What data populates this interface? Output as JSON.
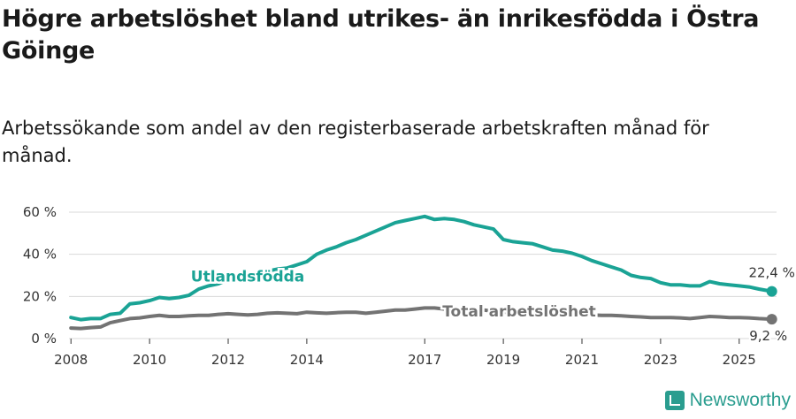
{
  "title": "Högre arbetslöshet bland utrikes- än inrikesfödda i Östra Göinge",
  "subtitle": "Arbetssökande som andel av den registerbaserade arbetskraften månad för månad.",
  "brand": "Newsworthy",
  "colors": {
    "foreign": "#1aa395",
    "total": "#737373",
    "grid": "#d9d9d9"
  },
  "chart_data": {
    "type": "line",
    "title": "Högre arbetslöshet bland utrikes- än inrikesfödda i Östra Göinge",
    "xlabel": "",
    "ylabel": "",
    "ylim": [
      0,
      60
    ],
    "xlim": [
      2007.95,
      2025.95
    ],
    "y_ticks": [
      0,
      20,
      40,
      60
    ],
    "y_tick_labels": [
      "0 %",
      "20 %",
      "40 %",
      "60 %"
    ],
    "x_ticks": [
      2008,
      2010,
      2012,
      2014,
      2017,
      2019,
      2021,
      2023,
      2025
    ],
    "x_tick_labels": [
      "2008",
      "2010",
      "2012",
      "2014",
      "2017",
      "2019",
      "2021",
      "2023",
      "2025"
    ],
    "series": [
      {
        "name": "Utlandsfödda",
        "color": "#1aa395",
        "end_label": "22,4 %",
        "points": [
          [
            2008.0,
            10
          ],
          [
            2008.25,
            9
          ],
          [
            2008.5,
            9.5
          ],
          [
            2008.75,
            9.5
          ],
          [
            2009.0,
            11.5
          ],
          [
            2009.25,
            12
          ],
          [
            2009.5,
            16.5
          ],
          [
            2009.75,
            17
          ],
          [
            2010.0,
            18
          ],
          [
            2010.25,
            19.5
          ],
          [
            2010.5,
            19
          ],
          [
            2010.75,
            19.5
          ],
          [
            2011.0,
            20.5
          ],
          [
            2011.25,
            23.5
          ],
          [
            2011.5,
            25
          ],
          [
            2011.75,
            26
          ],
          [
            2012.0,
            28
          ],
          [
            2012.25,
            29
          ],
          [
            2012.5,
            30
          ],
          [
            2012.75,
            31
          ],
          [
            2013.0,
            32
          ],
          [
            2013.25,
            33
          ],
          [
            2013.5,
            33.5
          ],
          [
            2013.75,
            35
          ],
          [
            2014.0,
            36.5
          ],
          [
            2014.25,
            40
          ],
          [
            2014.5,
            42
          ],
          [
            2014.75,
            43.5
          ],
          [
            2015.0,
            45.5
          ],
          [
            2015.25,
            47
          ],
          [
            2015.5,
            49
          ],
          [
            2015.75,
            51
          ],
          [
            2016.0,
            53
          ],
          [
            2016.25,
            55
          ],
          [
            2016.5,
            56
          ],
          [
            2016.75,
            57
          ],
          [
            2017.0,
            58
          ],
          [
            2017.25,
            56.5
          ],
          [
            2017.5,
            57
          ],
          [
            2017.75,
            56.5
          ],
          [
            2018.0,
            55.5
          ],
          [
            2018.25,
            54
          ],
          [
            2018.5,
            53
          ],
          [
            2018.75,
            52
          ],
          [
            2019.0,
            47
          ],
          [
            2019.25,
            46
          ],
          [
            2019.5,
            45.5
          ],
          [
            2019.75,
            45
          ],
          [
            2020.0,
            43.5
          ],
          [
            2020.25,
            42
          ],
          [
            2020.5,
            41.5
          ],
          [
            2020.75,
            40.5
          ],
          [
            2021.0,
            39
          ],
          [
            2021.25,
            37
          ],
          [
            2021.5,
            35.5
          ],
          [
            2021.75,
            34
          ],
          [
            2022.0,
            32.5
          ],
          [
            2022.25,
            30
          ],
          [
            2022.5,
            29
          ],
          [
            2022.75,
            28.5
          ],
          [
            2023.0,
            26.5
          ],
          [
            2023.25,
            25.5
          ],
          [
            2023.5,
            25.5
          ],
          [
            2023.75,
            25
          ],
          [
            2024.0,
            25
          ],
          [
            2024.25,
            27
          ],
          [
            2024.5,
            26
          ],
          [
            2024.75,
            25.5
          ],
          [
            2025.0,
            25
          ],
          [
            2025.25,
            24.5
          ],
          [
            2025.5,
            23.5
          ],
          [
            2025.83,
            22.4
          ]
        ]
      },
      {
        "name": "Total arbetslöshet",
        "color": "#737373",
        "end_label": "9,2 %",
        "points": [
          [
            2008.0,
            5
          ],
          [
            2008.25,
            4.8
          ],
          [
            2008.5,
            5.2
          ],
          [
            2008.75,
            5.5
          ],
          [
            2009.0,
            7.5
          ],
          [
            2009.25,
            8.5
          ],
          [
            2009.5,
            9.5
          ],
          [
            2009.75,
            9.8
          ],
          [
            2010.0,
            10.5
          ],
          [
            2010.25,
            11
          ],
          [
            2010.5,
            10.5
          ],
          [
            2010.75,
            10.5
          ],
          [
            2011.0,
            10.8
          ],
          [
            2011.25,
            11
          ],
          [
            2011.5,
            11
          ],
          [
            2011.75,
            11.5
          ],
          [
            2012.0,
            11.8
          ],
          [
            2012.25,
            11.5
          ],
          [
            2012.5,
            11.2
          ],
          [
            2012.75,
            11.5
          ],
          [
            2013.0,
            12
          ],
          [
            2013.25,
            12.2
          ],
          [
            2013.5,
            12
          ],
          [
            2013.75,
            11.8
          ],
          [
            2014.0,
            12.5
          ],
          [
            2014.25,
            12.2
          ],
          [
            2014.5,
            12
          ],
          [
            2014.75,
            12.3
          ],
          [
            2015.0,
            12.5
          ],
          [
            2015.25,
            12.5
          ],
          [
            2015.5,
            12
          ],
          [
            2015.75,
            12.5
          ],
          [
            2016.0,
            13
          ],
          [
            2016.25,
            13.5
          ],
          [
            2016.5,
            13.5
          ],
          [
            2016.75,
            14
          ],
          [
            2017.0,
            14.5
          ],
          [
            2017.25,
            14.5
          ],
          [
            2017.5,
            14
          ],
          [
            2017.75,
            14
          ],
          [
            2018.0,
            13.5
          ],
          [
            2018.25,
            13.5
          ],
          [
            2018.5,
            13.5
          ],
          [
            2018.75,
            13
          ],
          [
            2019.0,
            12.5
          ],
          [
            2019.25,
            12.5
          ],
          [
            2019.5,
            12
          ],
          [
            2019.75,
            12
          ],
          [
            2020.0,
            12
          ],
          [
            2020.25,
            12
          ],
          [
            2020.5,
            11.8
          ],
          [
            2020.75,
            11.5
          ],
          [
            2021.0,
            11.5
          ],
          [
            2021.25,
            11.2
          ],
          [
            2021.5,
            11
          ],
          [
            2021.75,
            11
          ],
          [
            2022.0,
            10.8
          ],
          [
            2022.25,
            10.5
          ],
          [
            2022.5,
            10.3
          ],
          [
            2022.75,
            10
          ],
          [
            2023.0,
            10
          ],
          [
            2023.25,
            10
          ],
          [
            2023.5,
            9.8
          ],
          [
            2023.75,
            9.5
          ],
          [
            2024.0,
            10
          ],
          [
            2024.25,
            10.5
          ],
          [
            2024.5,
            10.3
          ],
          [
            2024.75,
            10
          ],
          [
            2025.0,
            10
          ],
          [
            2025.25,
            9.8
          ],
          [
            2025.5,
            9.5
          ],
          [
            2025.83,
            9.2
          ]
        ]
      }
    ]
  }
}
